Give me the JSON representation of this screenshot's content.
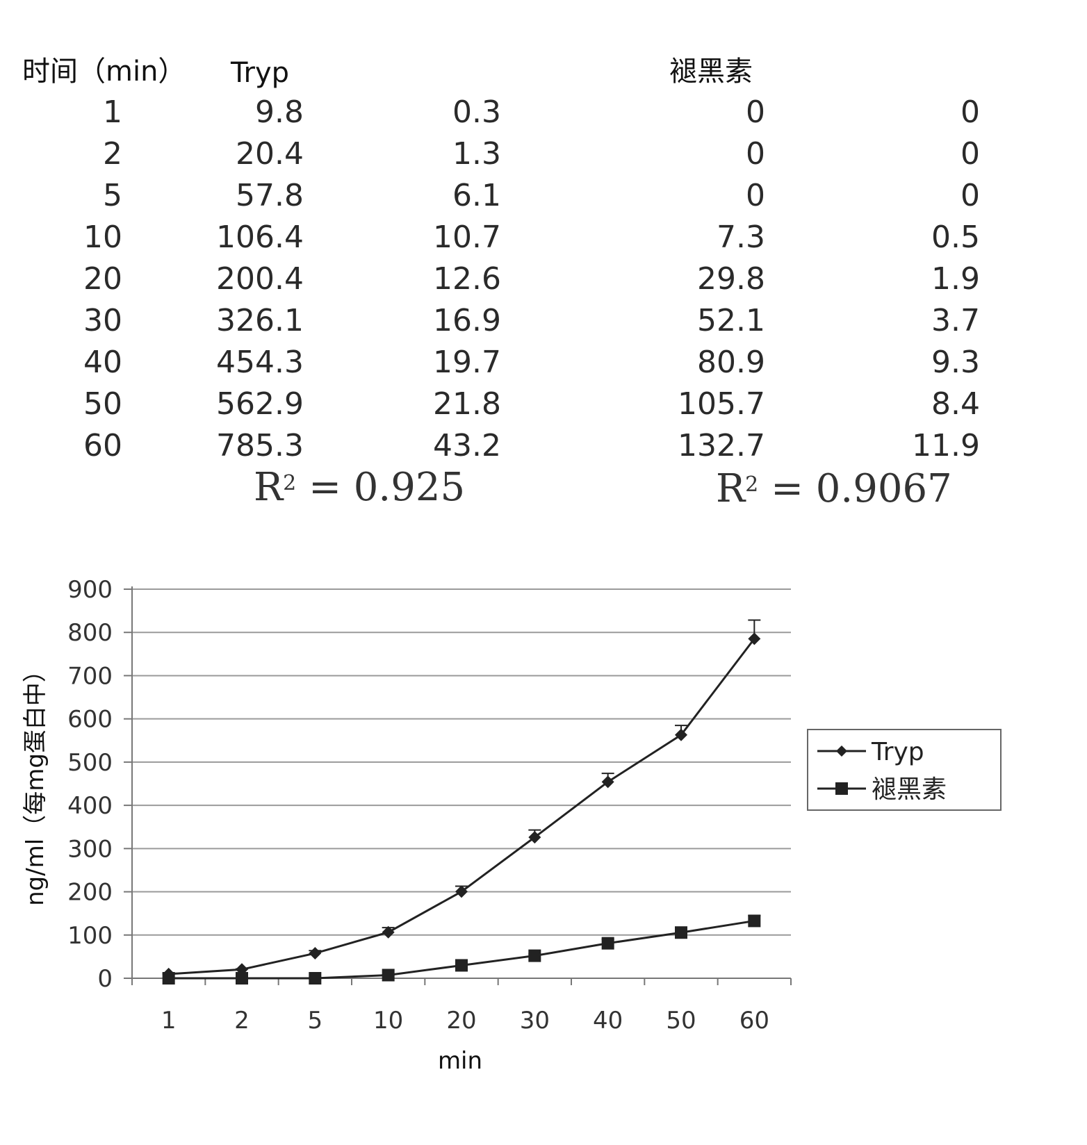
{
  "table": {
    "headers": {
      "time": "时间（min）",
      "tryp": "Tryp",
      "melatonin": "褪黑素"
    },
    "rows": [
      [
        "1",
        "9.8",
        "0.3",
        "0",
        "0"
      ],
      [
        "2",
        "20.4",
        "1.3",
        "0",
        "0"
      ],
      [
        "5",
        "57.8",
        "6.1",
        "0",
        "0"
      ],
      [
        "10",
        "106.4",
        "10.7",
        "7.3",
        "0.5"
      ],
      [
        "20",
        "200.4",
        "12.6",
        "29.8",
        "1.9"
      ],
      [
        "30",
        "326.1",
        "16.9",
        "52.1",
        "3.7"
      ],
      [
        "40",
        "454.3",
        "19.7",
        "80.9",
        "9.3"
      ],
      [
        "50",
        "562.9",
        "21.8",
        "105.7",
        "8.4"
      ],
      [
        "60",
        "785.3",
        "43.2",
        "132.7",
        "11.9"
      ]
    ],
    "r2_tryp": {
      "prefix": "R",
      "sup": "2",
      "value": " = 0.925"
    },
    "r2_melatonin": {
      "prefix": "R",
      "sup": "2",
      "value": " = 0.9067"
    }
  },
  "chart_data": {
    "type": "line",
    "categories": [
      "1",
      "2",
      "5",
      "10",
      "20",
      "30",
      "40",
      "50",
      "60"
    ],
    "series": [
      {
        "name": "Tryp",
        "marker": "diamond",
        "values": [
          9.8,
          20.4,
          57.8,
          106.4,
          200.4,
          326.1,
          454.3,
          562.9,
          785.3
        ],
        "errors": [
          0.3,
          1.3,
          6.1,
          10.7,
          12.6,
          16.9,
          19.7,
          21.8,
          43.2
        ]
      },
      {
        "name": "褪黑素",
        "marker": "square",
        "values": [
          0,
          0,
          0,
          7.3,
          29.8,
          52.1,
          80.9,
          105.7,
          132.7
        ],
        "errors": [
          0,
          0,
          0,
          0.5,
          1.9,
          3.7,
          9.3,
          8.4,
          11.9
        ]
      }
    ],
    "xlabel": "min",
    "ylabel": "ng/ml（每mg蛋白中）",
    "ylim": [
      0,
      900
    ],
    "yticks": [
      "0",
      "100",
      "200",
      "300",
      "400",
      "500",
      "600",
      "700",
      "800",
      "900"
    ],
    "grid": true,
    "legend": "right",
    "colors": {
      "line": "#222222",
      "grid": "#9a9a9a",
      "axis": "#777777"
    }
  }
}
